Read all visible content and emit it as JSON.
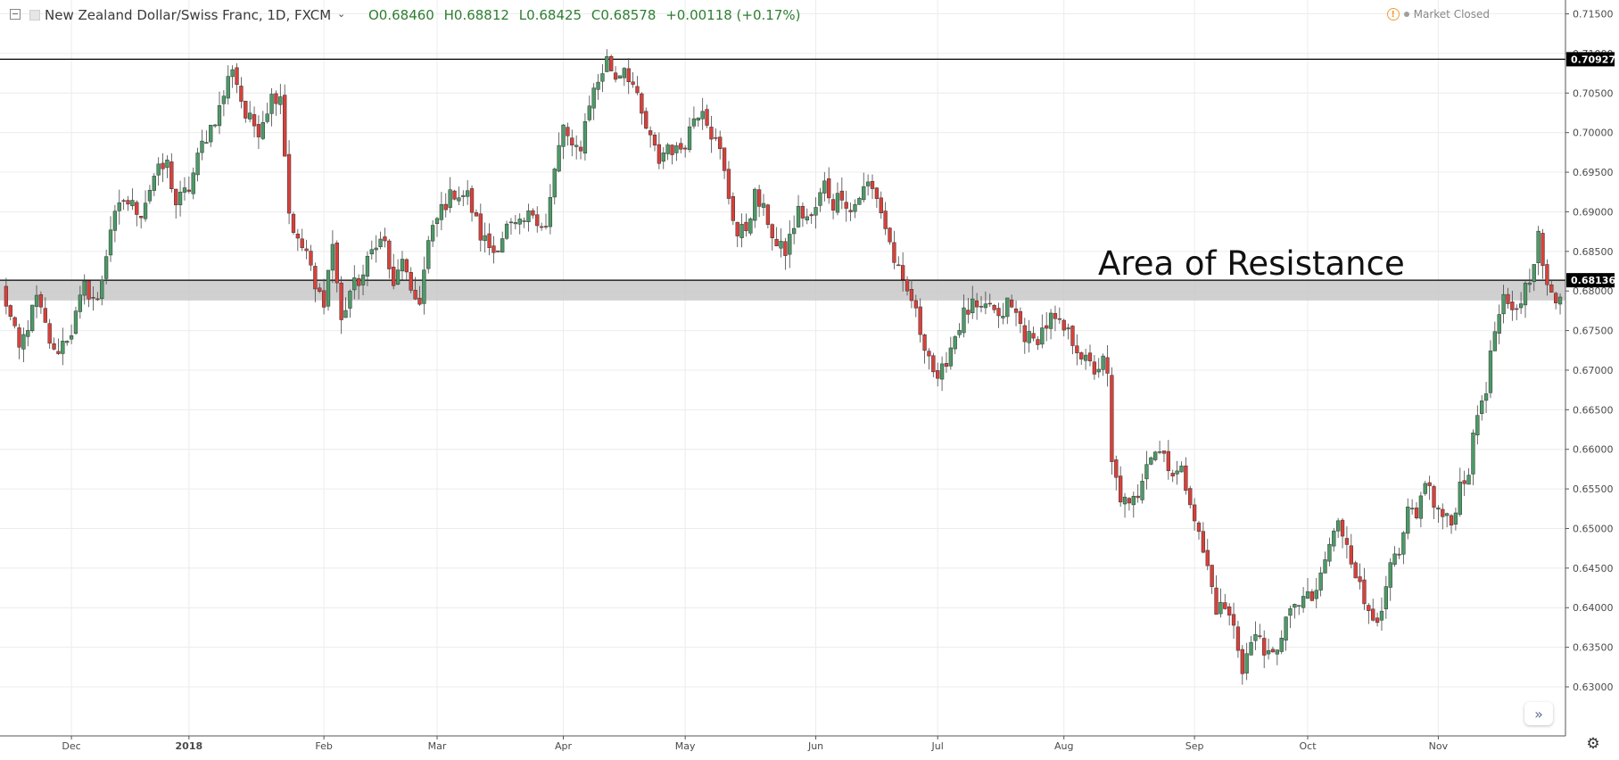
{
  "header": {
    "symbol": "New Zealand Dollar/Swiss Franc, 1D, FXCM",
    "open": "O0.68460",
    "high": "H0.68812",
    "low": "L0.68425",
    "close": "C0.68578",
    "change": "+0.00118 (+0.17%)",
    "market_status": "Market Closed"
  },
  "annotation": {
    "text": "Area of Resistance"
  },
  "colors": {
    "up": "#4c9a67",
    "down": "#d9403a",
    "zone": "#c8c8c8",
    "grid": "#ececec"
  },
  "chart_data": {
    "type": "candlestick",
    "title": "New Zealand Dollar/Swiss Franc, 1D, FXCM",
    "ylim": [
      0.627,
      0.716
    ],
    "y_ticks": [
      {
        "v": 0.715,
        "label": "0.71500"
      },
      {
        "v": 0.71,
        "label": "0.71000"
      },
      {
        "v": 0.705,
        "label": "0.70500"
      },
      {
        "v": 0.7,
        "label": "0.70000"
      },
      {
        "v": 0.695,
        "label": "0.69500"
      },
      {
        "v": 0.69,
        "label": "0.69000"
      },
      {
        "v": 0.685,
        "label": "0.68500"
      },
      {
        "v": 0.68,
        "label": "0.68000"
      },
      {
        "v": 0.675,
        "label": "0.67500"
      },
      {
        "v": 0.67,
        "label": "0.67000"
      },
      {
        "v": 0.665,
        "label": "0.66500"
      },
      {
        "v": 0.66,
        "label": "0.66000"
      },
      {
        "v": 0.655,
        "label": "0.65500"
      },
      {
        "v": 0.65,
        "label": "0.65000"
      },
      {
        "v": 0.645,
        "label": "0.64500"
      },
      {
        "v": 0.64,
        "label": "0.64000"
      },
      {
        "v": 0.635,
        "label": "0.63500"
      },
      {
        "v": 0.63,
        "label": "0.63000"
      }
    ],
    "x_ticks": [
      {
        "i": 16,
        "label": "Dec",
        "bold": false
      },
      {
        "i": 43,
        "label": "2018",
        "bold": true
      },
      {
        "i": 74,
        "label": "Feb",
        "bold": false
      },
      {
        "i": 100,
        "label": "Mar",
        "bold": false
      },
      {
        "i": 129,
        "label": "Apr",
        "bold": false
      },
      {
        "i": 157,
        "label": "May",
        "bold": false
      },
      {
        "i": 187,
        "label": "Jun",
        "bold": false
      },
      {
        "i": 215,
        "label": "Jul",
        "bold": false
      },
      {
        "i": 244,
        "label": "Aug",
        "bold": false
      },
      {
        "i": 274,
        "label": "Sep",
        "bold": false
      },
      {
        "i": 300,
        "label": "Oct",
        "bold": false
      },
      {
        "i": 330,
        "label": "Nov",
        "bold": false
      }
    ],
    "horizontal_lines": [
      {
        "value": 0.70927,
        "label": "0.70927"
      },
      {
        "value": 0.68136,
        "label": "0.68136"
      }
    ],
    "resistance_zone": [
      0.6788,
      0.68136
    ],
    "anchors": [
      [
        0,
        0.6805
      ],
      [
        4,
        0.6725
      ],
      [
        8,
        0.679
      ],
      [
        12,
        0.672
      ],
      [
        16,
        0.675
      ],
      [
        19,
        0.6805
      ],
      [
        22,
        0.6785
      ],
      [
        25,
        0.688
      ],
      [
        28,
        0.6915
      ],
      [
        32,
        0.69
      ],
      [
        35,
        0.6945
      ],
      [
        38,
        0.696
      ],
      [
        40,
        0.691
      ],
      [
        43,
        0.693
      ],
      [
        46,
        0.6985
      ],
      [
        50,
        0.703
      ],
      [
        53,
        0.7085
      ],
      [
        56,
        0.702
      ],
      [
        59,
        0.7005
      ],
      [
        62,
        0.7045
      ],
      [
        64,
        0.705
      ],
      [
        66,
        0.69
      ],
      [
        68,
        0.686
      ],
      [
        70,
        0.685
      ],
      [
        72,
        0.68
      ],
      [
        74,
        0.679
      ],
      [
        76,
        0.686
      ],
      [
        78,
        0.676
      ],
      [
        80,
        0.68
      ],
      [
        83,
        0.682
      ],
      [
        86,
        0.6865
      ],
      [
        88,
        0.686
      ],
      [
        90,
        0.68
      ],
      [
        92,
        0.6845
      ],
      [
        94,
        0.679
      ],
      [
        96,
        0.679
      ],
      [
        98,
        0.686
      ],
      [
        101,
        0.6905
      ],
      [
        104,
        0.6925
      ],
      [
        107,
        0.692
      ],
      [
        110,
        0.687
      ],
      [
        113,
        0.685
      ],
      [
        116,
        0.688
      ],
      [
        119,
        0.688
      ],
      [
        122,
        0.69
      ],
      [
        125,
        0.688
      ],
      [
        127,
        0.695
      ],
      [
        129,
        0.701
      ],
      [
        131,
        0.6975
      ],
      [
        133,
        0.6985
      ],
      [
        135,
        0.704
      ],
      [
        137,
        0.7065
      ],
      [
        139,
        0.7092
      ],
      [
        141,
        0.707
      ],
      [
        143,
        0.7085
      ],
      [
        145,
        0.706
      ],
      [
        147,
        0.702
      ],
      [
        149,
        0.699
      ],
      [
        151,
        0.6965
      ],
      [
        153,
        0.6985
      ],
      [
        155,
        0.6975
      ],
      [
        157,
        0.699
      ],
      [
        159,
        0.702
      ],
      [
        161,
        0.7035
      ],
      [
        163,
        0.7
      ],
      [
        165,
        0.6975
      ],
      [
        167,
        0.692
      ],
      [
        169,
        0.687
      ],
      [
        171,
        0.688
      ],
      [
        173,
        0.692
      ],
      [
        176,
        0.689
      ],
      [
        178,
        0.6855
      ],
      [
        180,
        0.685
      ],
      [
        183,
        0.69
      ],
      [
        186,
        0.689
      ],
      [
        189,
        0.6935
      ],
      [
        191,
        0.691
      ],
      [
        193,
        0.6925
      ],
      [
        195,
        0.69
      ],
      [
        197,
        0.692
      ],
      [
        199,
        0.6935
      ],
      [
        201,
        0.692
      ],
      [
        203,
        0.688
      ],
      [
        205,
        0.684
      ],
      [
        207,
        0.6805
      ],
      [
        209,
        0.679
      ],
      [
        211,
        0.675
      ],
      [
        213,
        0.672
      ],
      [
        215,
        0.668
      ],
      [
        217,
        0.6715
      ],
      [
        219,
        0.6745
      ],
      [
        221,
        0.677
      ],
      [
        223,
        0.678
      ],
      [
        225,
        0.677
      ],
      [
        227,
        0.6785
      ],
      [
        229,
        0.676
      ],
      [
        231,
        0.6785
      ],
      [
        233,
        0.677
      ],
      [
        235,
        0.6745
      ],
      [
        237,
        0.6735
      ],
      [
        239,
        0.675
      ],
      [
        241,
        0.6765
      ],
      [
        243,
        0.6755
      ],
      [
        245,
        0.6745
      ],
      [
        247,
        0.673
      ],
      [
        249,
        0.671
      ],
      [
        251,
        0.67
      ],
      [
        253,
        0.671
      ],
      [
        254,
        0.669
      ],
      [
        255,
        0.658
      ],
      [
        257,
        0.654
      ],
      [
        259,
        0.6525
      ],
      [
        261,
        0.6545
      ],
      [
        263,
        0.659
      ],
      [
        265,
        0.66
      ],
      [
        267,
        0.6595
      ],
      [
        269,
        0.657
      ],
      [
        271,
        0.657
      ],
      [
        273,
        0.654
      ],
      [
        275,
        0.649
      ],
      [
        277,
        0.645
      ],
      [
        279,
        0.64
      ],
      [
        281,
        0.64
      ],
      [
        283,
        0.6375
      ],
      [
        285,
        0.6325
      ],
      [
        287,
        0.6355
      ],
      [
        289,
        0.6365
      ],
      [
        291,
        0.6335
      ],
      [
        293,
        0.634
      ],
      [
        295,
        0.6395
      ],
      [
        297,
        0.6395
      ],
      [
        299,
        0.6415
      ],
      [
        301,
        0.6405
      ],
      [
        303,
        0.644
      ],
      [
        305,
        0.648
      ],
      [
        307,
        0.6505
      ],
      [
        309,
        0.6485
      ],
      [
        311,
        0.6445
      ],
      [
        313,
        0.6405
      ],
      [
        315,
        0.6395
      ],
      [
        317,
        0.6385
      ],
      [
        319,
        0.6455
      ],
      [
        321,
        0.646
      ],
      [
        323,
        0.652
      ],
      [
        325,
        0.651
      ],
      [
        327,
        0.6565
      ],
      [
        329,
        0.653
      ],
      [
        331,
        0.6515
      ],
      [
        333,
        0.6505
      ],
      [
        335,
        0.6555
      ],
      [
        337,
        0.6575
      ],
      [
        339,
        0.6645
      ],
      [
        341,
        0.668
      ],
      [
        343,
        0.675
      ],
      [
        345,
        0.6785
      ],
      [
        347,
        0.677
      ],
      [
        349,
        0.679
      ],
      [
        351,
        0.682
      ],
      [
        353,
        0.6868
      ],
      [
        355,
        0.68
      ],
      [
        357,
        0.679
      ],
      [
        358,
        0.68
      ]
    ]
  }
}
